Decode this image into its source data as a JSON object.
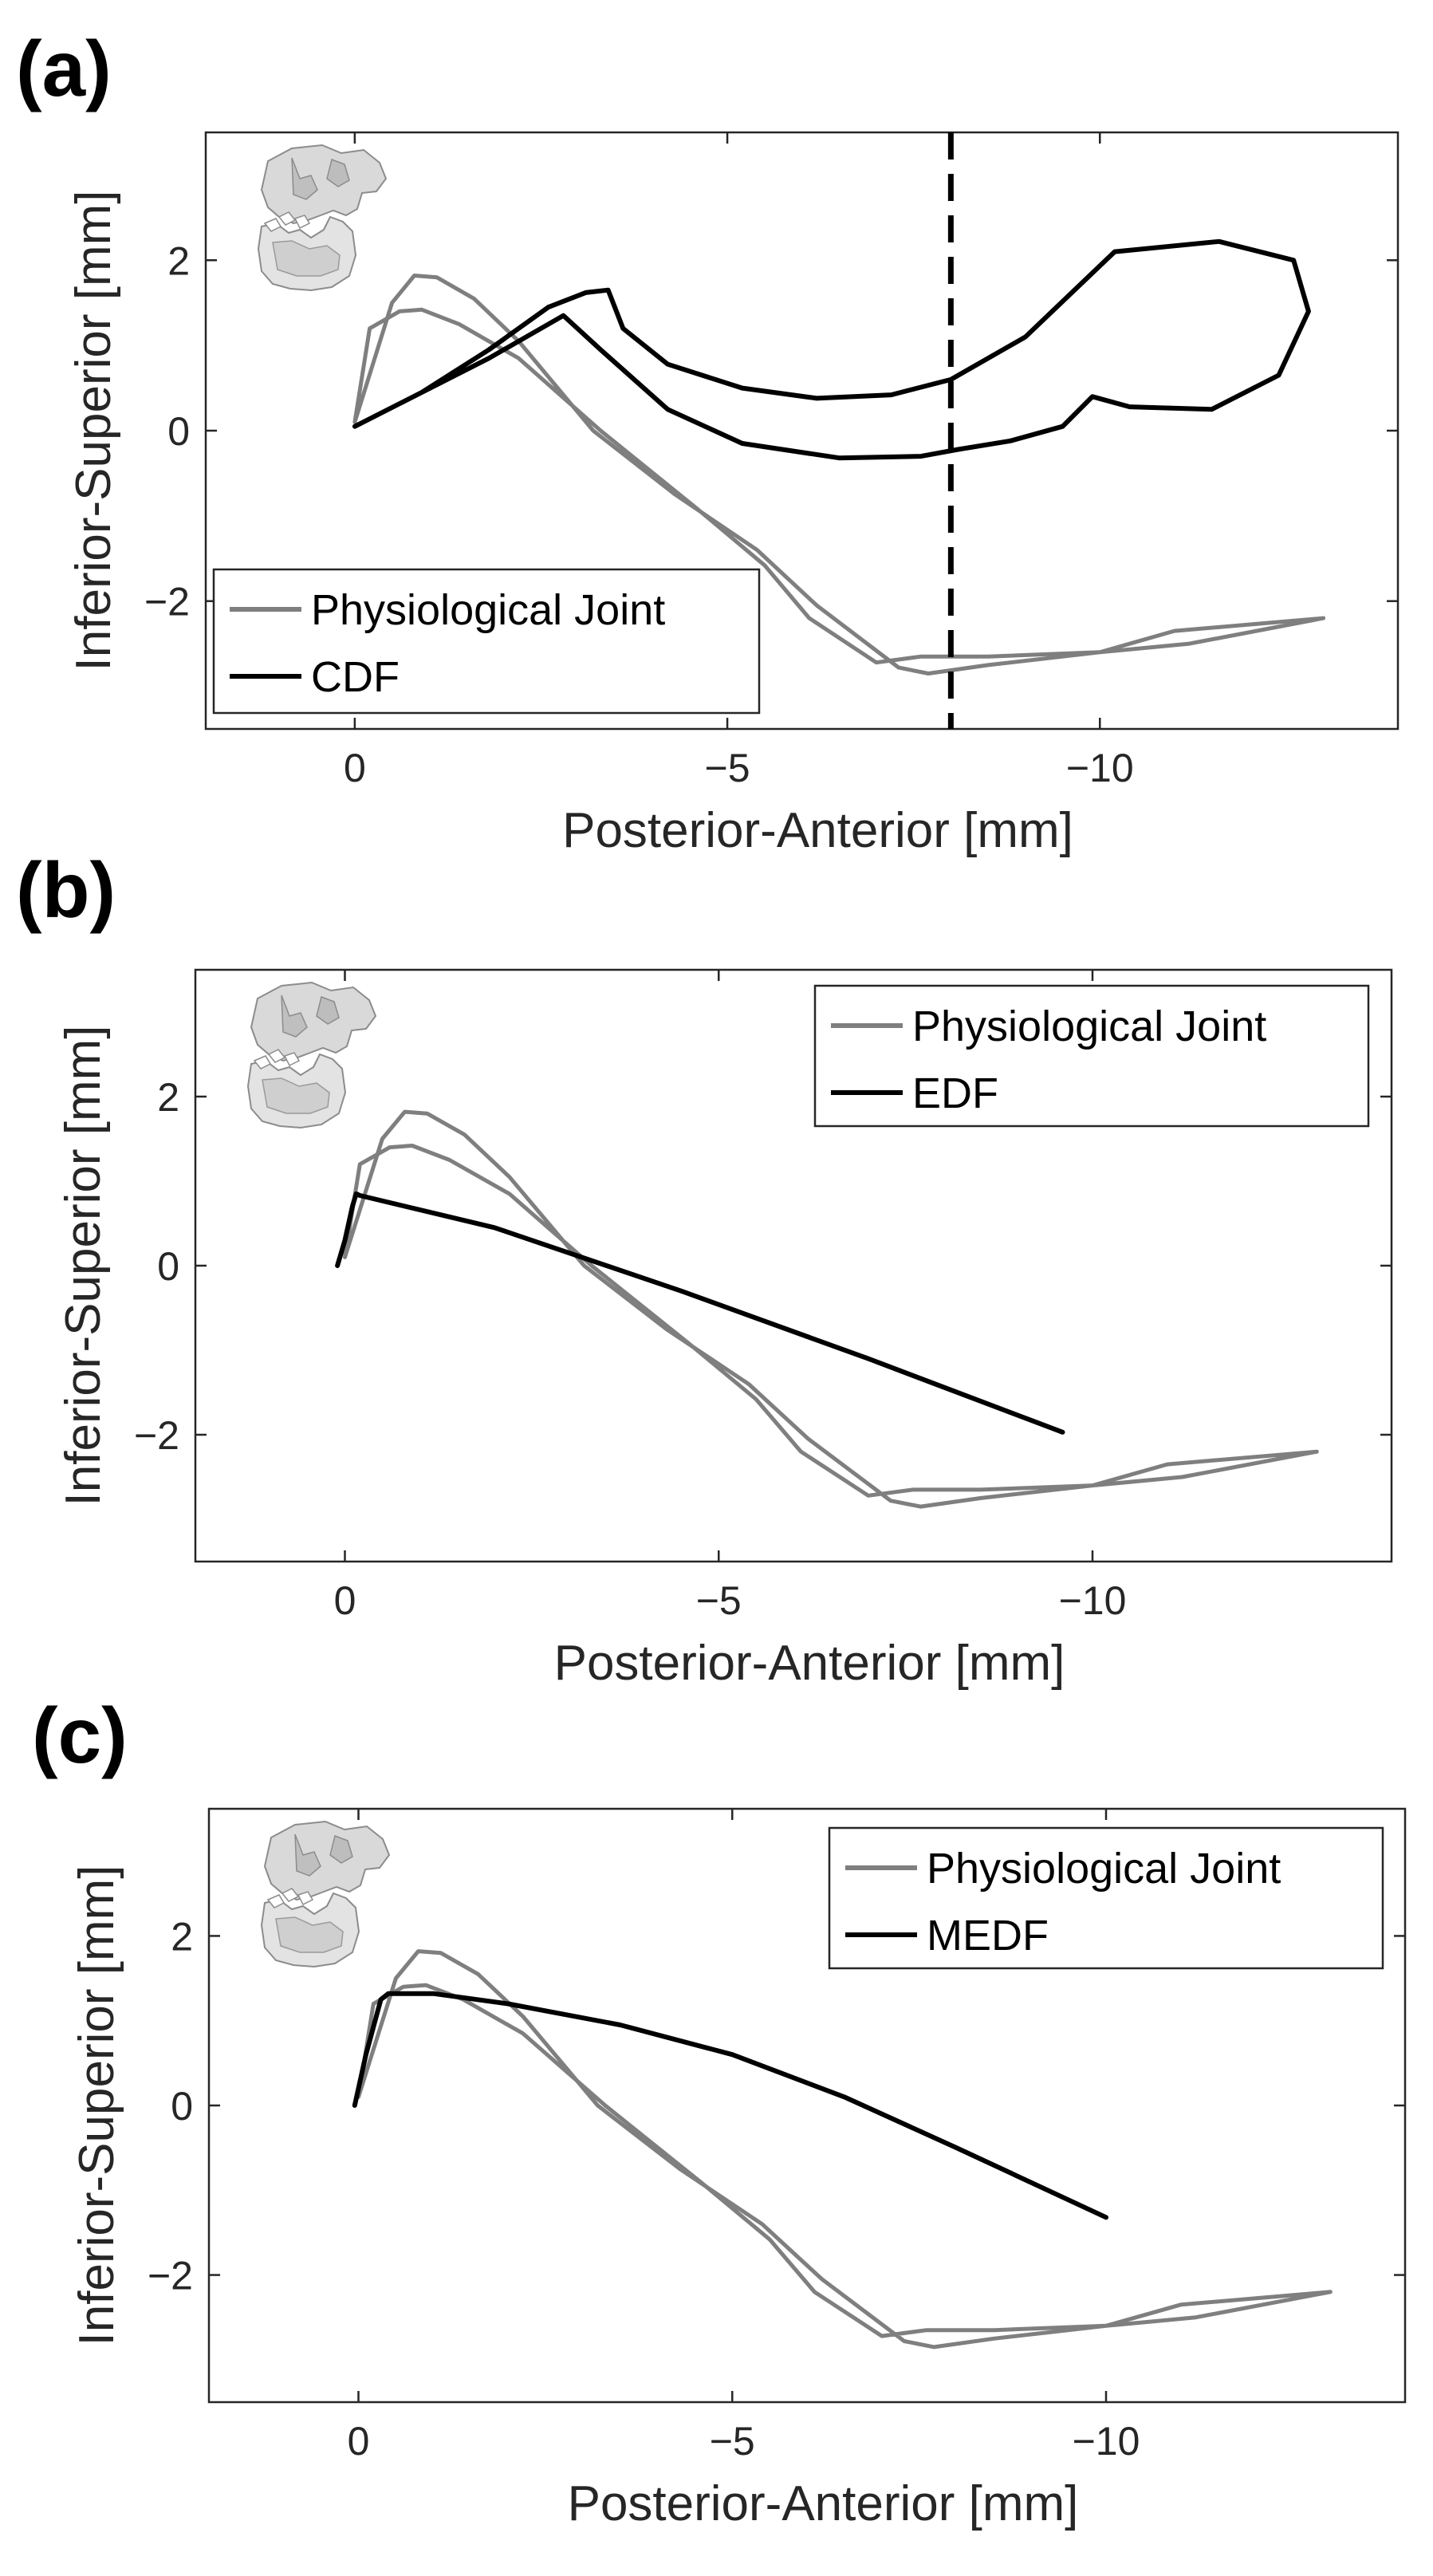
{
  "figure": {
    "description_labels": [
      "(a)",
      "(b)",
      "(c)"
    ]
  },
  "icon": "skull-jaw-icon",
  "colors": {
    "physiological": "#7f7f7f",
    "model": "#000000",
    "axes": "#262626"
  },
  "chart_data": [
    {
      "type": "line",
      "panel_label": "(a)",
      "xlabel": "Posterior-Anterior [mm]",
      "ylabel": "Inferior-Superior [mm]",
      "xlim": [
        2,
        -14
      ],
      "ylim": [
        -3.5,
        3.5
      ],
      "xticks": [
        0,
        -5,
        -10
      ],
      "xtick_labels": [
        "0",
        "−5",
        "−10"
      ],
      "yticks": [
        2,
        0,
        -2
      ],
      "ytick_labels": [
        "2",
        "0",
        "−2"
      ],
      "grid": false,
      "legend": {
        "position": "bottom-left",
        "entries": [
          "Physiological Joint",
          "CDF"
        ]
      },
      "vline": {
        "x": -8.0,
        "style": "dashed"
      },
      "series": [
        {
          "name": "Physiological Joint",
          "color": "#7f7f7f",
          "x": [
            0,
            -0.5,
            -0.8,
            -1.1,
            -1.6,
            -2.2,
            -3.2,
            -4.3,
            -5.4,
            -6.2,
            -7.3,
            -7.7,
            -8.5,
            -10.0,
            -11.2,
            -13.0,
            -11.0,
            -10.0,
            -8.5,
            -7.6,
            -7.0,
            -6.1,
            -5.5,
            -4.6,
            -3.3,
            -2.2,
            -1.4,
            -0.9,
            -0.6,
            -0.2,
            0
          ],
          "y": [
            0.1,
            1.5,
            1.82,
            1.8,
            1.55,
            1.05,
            0.0,
            -0.75,
            -1.4,
            -2.05,
            -2.78,
            -2.85,
            -2.75,
            -2.6,
            -2.5,
            -2.2,
            -2.35,
            -2.6,
            -2.65,
            -2.65,
            -2.72,
            -2.2,
            -1.58,
            -0.92,
            0.0,
            0.85,
            1.25,
            1.42,
            1.4,
            1.2,
            0.1
          ]
        },
        {
          "name": "CDF",
          "color": "#000000",
          "x": [
            0,
            -0.9,
            -1.8,
            -2.6,
            -3.1,
            -3.4,
            -3.6,
            -4.2,
            -5.2,
            -6.2,
            -7.2,
            -8.0,
            -9.0,
            -10.2,
            -11.6,
            -12.6,
            -12.8,
            -12.4,
            -11.5,
            -10.4,
            -9.9,
            -9.5,
            -8.8,
            -8.1,
            -7.6,
            -6.5,
            -5.2,
            -4.2,
            -3.3,
            -2.8,
            -1.8,
            -0.9,
            0
          ],
          "y": [
            0.05,
            0.45,
            0.95,
            1.45,
            1.62,
            1.65,
            1.2,
            0.78,
            0.5,
            0.38,
            0.42,
            0.6,
            1.1,
            2.1,
            2.22,
            2.0,
            1.4,
            0.65,
            0.25,
            0.28,
            0.4,
            0.05,
            -0.12,
            -0.22,
            -0.3,
            -0.32,
            -0.15,
            0.25,
            0.95,
            1.35,
            0.85,
            0.45,
            0.05
          ]
        }
      ]
    },
    {
      "type": "line",
      "panel_label": "(b)",
      "xlabel": "Posterior-Anterior [mm]",
      "ylabel": "Inferior-Superior [mm]",
      "xlim": [
        2,
        -14
      ],
      "ylim": [
        -3.5,
        3.5
      ],
      "xticks": [
        0,
        -5,
        -10
      ],
      "xtick_labels": [
        "0",
        "−5",
        "−10"
      ],
      "yticks": [
        2,
        0,
        -2
      ],
      "ytick_labels": [
        "2",
        "0",
        "−2"
      ],
      "grid": false,
      "legend": {
        "position": "top-right",
        "entries": [
          "Physiological Joint",
          "EDF"
        ]
      },
      "series": [
        {
          "name": "Physiological Joint",
          "color": "#7f7f7f",
          "x": [
            0,
            -0.5,
            -0.8,
            -1.1,
            -1.6,
            -2.2,
            -3.2,
            -4.3,
            -5.4,
            -6.2,
            -7.3,
            -7.7,
            -8.5,
            -10.0,
            -11.2,
            -13.0,
            -11.0,
            -10.0,
            -8.5,
            -7.6,
            -7.0,
            -6.1,
            -5.5,
            -4.6,
            -3.3,
            -2.2,
            -1.4,
            -0.9,
            -0.6,
            -0.2,
            0
          ],
          "y": [
            0.1,
            1.5,
            1.82,
            1.8,
            1.55,
            1.05,
            0.0,
            -0.75,
            -1.4,
            -2.05,
            -2.78,
            -2.85,
            -2.75,
            -2.6,
            -2.5,
            -2.2,
            -2.35,
            -2.6,
            -2.65,
            -2.65,
            -2.72,
            -2.2,
            -1.58,
            -0.92,
            0.0,
            0.85,
            1.25,
            1.42,
            1.4,
            1.2,
            0.1
          ]
        },
        {
          "name": "EDF",
          "color": "#000000",
          "x": [
            0.1,
            0.0,
            -0.1,
            -0.15,
            -0.2,
            -2.0,
            -4.5,
            -7.0,
            -9.6
          ],
          "y": [
            0.0,
            0.3,
            0.7,
            0.85,
            0.83,
            0.45,
            -0.3,
            -1.1,
            -1.97
          ]
        }
      ]
    },
    {
      "type": "line",
      "panel_label": "(c)",
      "xlabel": "Posterior-Anterior [mm]",
      "ylabel": "Inferior-Superior [mm]",
      "xlim": [
        2,
        -14
      ],
      "ylim": [
        -3.5,
        3.5
      ],
      "xticks": [
        0,
        -5,
        -10
      ],
      "xtick_labels": [
        "0",
        "−5",
        "−10"
      ],
      "yticks": [
        2,
        0,
        -2
      ],
      "ytick_labels": [
        "2",
        "0",
        "−2"
      ],
      "grid": false,
      "legend": {
        "position": "top-right",
        "entries": [
          "Physiological Joint",
          "MEDF"
        ]
      },
      "series": [
        {
          "name": "Physiological Joint",
          "color": "#7f7f7f",
          "x": [
            0,
            -0.5,
            -0.8,
            -1.1,
            -1.6,
            -2.2,
            -3.2,
            -4.3,
            -5.4,
            -6.2,
            -7.3,
            -7.7,
            -8.5,
            -10.0,
            -11.2,
            -13.0,
            -11.0,
            -10.0,
            -8.5,
            -7.6,
            -7.0,
            -6.1,
            -5.5,
            -4.6,
            -3.3,
            -2.2,
            -1.4,
            -0.9,
            -0.6,
            -0.2,
            0
          ],
          "y": [
            0.1,
            1.5,
            1.82,
            1.8,
            1.55,
            1.05,
            0.0,
            -0.75,
            -1.4,
            -2.05,
            -2.78,
            -2.85,
            -2.75,
            -2.6,
            -2.5,
            -2.2,
            -2.35,
            -2.6,
            -2.65,
            -2.65,
            -2.72,
            -2.2,
            -1.58,
            -0.92,
            0.0,
            0.85,
            1.25,
            1.42,
            1.4,
            1.2,
            0.1
          ]
        },
        {
          "name": "MEDF",
          "color": "#000000",
          "x": [
            0.05,
            -0.1,
            -0.3,
            -0.4,
            -1.0,
            -2.0,
            -3.5,
            -5.0,
            -6.5,
            -8.0,
            -10.0
          ],
          "y": [
            0.0,
            0.6,
            1.25,
            1.32,
            1.32,
            1.2,
            0.95,
            0.6,
            0.1,
            -0.5,
            -1.32
          ]
        }
      ]
    }
  ]
}
